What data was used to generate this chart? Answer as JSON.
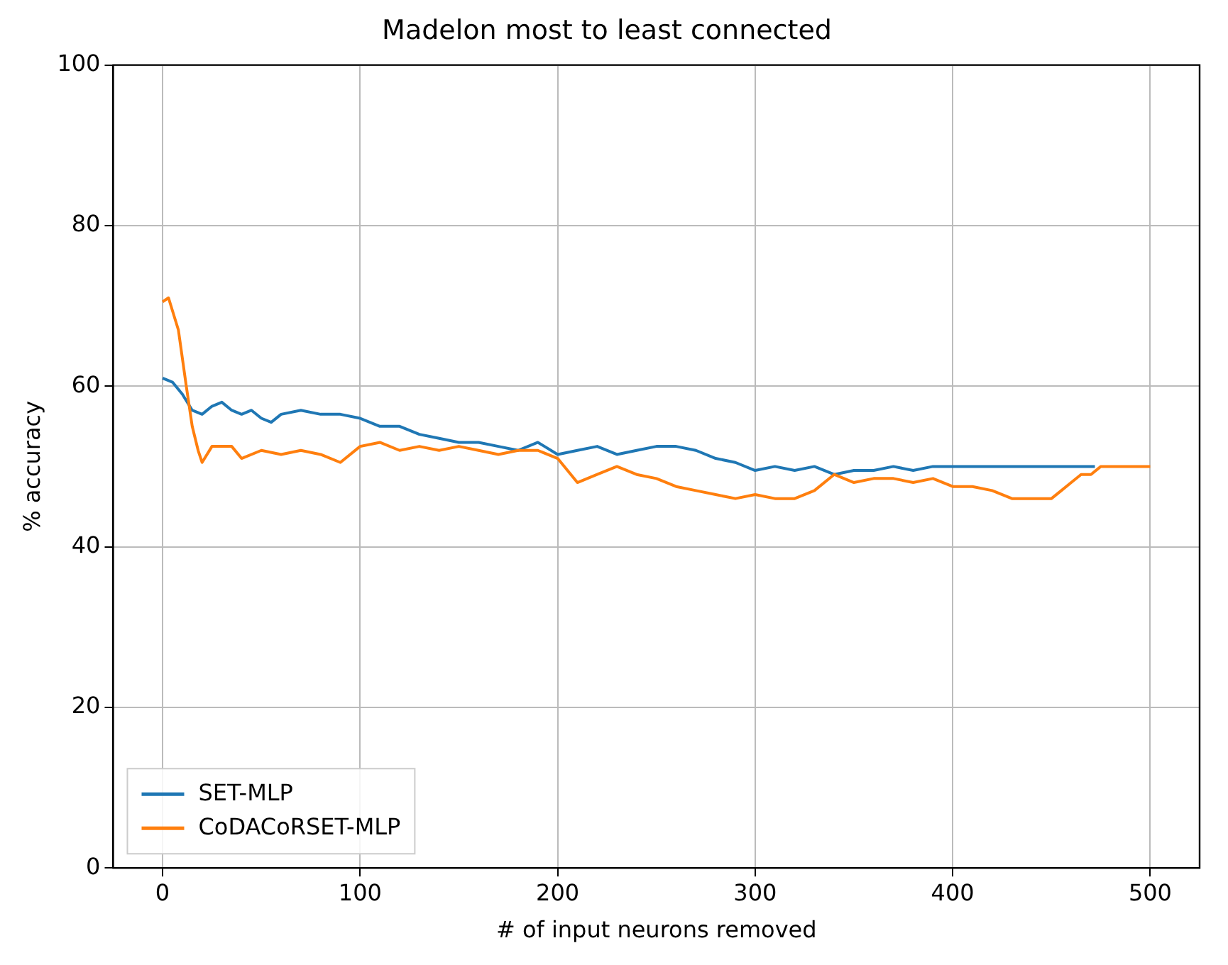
{
  "chart_data": {
    "type": "line",
    "title": "Madelon most to least connected",
    "xlabel": "# of input neurons removed",
    "ylabel": "% accuracy",
    "xlim": [
      -25,
      525
    ],
    "xticks": [
      0,
      100,
      200,
      300,
      400,
      500
    ],
    "ylim": [
      0,
      100
    ],
    "yticks": [
      0,
      20,
      40,
      60,
      80,
      100
    ],
    "grid": true,
    "legend": "bottom left",
    "line_style": "solid",
    "marker": "none",
    "series": [
      {
        "name": "SET-MLP",
        "color": "#1f77b4",
        "x": [
          0,
          5,
          10,
          15,
          20,
          25,
          30,
          35,
          40,
          45,
          50,
          55,
          60,
          70,
          80,
          90,
          100,
          110,
          120,
          130,
          140,
          150,
          160,
          170,
          180,
          190,
          200,
          210,
          220,
          230,
          240,
          250,
          260,
          270,
          280,
          290,
          300,
          310,
          320,
          330,
          340,
          350,
          360,
          370,
          380,
          390,
          400,
          450,
          472
        ],
        "values": [
          61,
          60.5,
          59,
          57,
          56.5,
          57.5,
          58,
          57,
          56.5,
          57,
          56,
          55.5,
          56.5,
          57,
          56.5,
          56.5,
          56,
          55,
          55,
          54,
          53.5,
          53,
          53,
          52.5,
          52,
          53,
          51.5,
          52,
          52.5,
          51.5,
          52,
          52.5,
          52.5,
          52,
          51,
          50.5,
          49.5,
          50,
          49.5,
          50,
          49,
          49.5,
          49.5,
          50,
          49.5,
          50,
          50,
          50,
          50
        ]
      },
      {
        "name": "CoDACoRSET-MLP",
        "color": "#ff7f0e",
        "x": [
          0,
          3,
          8,
          12,
          15,
          18,
          20,
          25,
          30,
          35,
          40,
          50,
          60,
          70,
          80,
          90,
          100,
          110,
          120,
          130,
          140,
          150,
          160,
          170,
          180,
          190,
          200,
          210,
          220,
          230,
          240,
          250,
          260,
          270,
          280,
          290,
          300,
          310,
          320,
          330,
          340,
          350,
          360,
          370,
          380,
          390,
          400,
          410,
          420,
          430,
          440,
          450,
          455,
          460,
          465,
          470,
          475,
          480,
          490,
          500
        ],
        "values": [
          70.5,
          71,
          67,
          60,
          55,
          52,
          50.5,
          52.5,
          52.5,
          52.5,
          51,
          52,
          51.5,
          52,
          51.5,
          50.5,
          52.5,
          53,
          52,
          52.5,
          52,
          52.5,
          52,
          51.5,
          52,
          52,
          51,
          48,
          49,
          50,
          49,
          48.5,
          47.5,
          47,
          46.5,
          46,
          46.5,
          46,
          46,
          47,
          49,
          48,
          48.5,
          48.5,
          48,
          48.5,
          47.5,
          47.5,
          47,
          46,
          46,
          46,
          47,
          48,
          49,
          49,
          50,
          50,
          50,
          50
        ]
      }
    ]
  }
}
